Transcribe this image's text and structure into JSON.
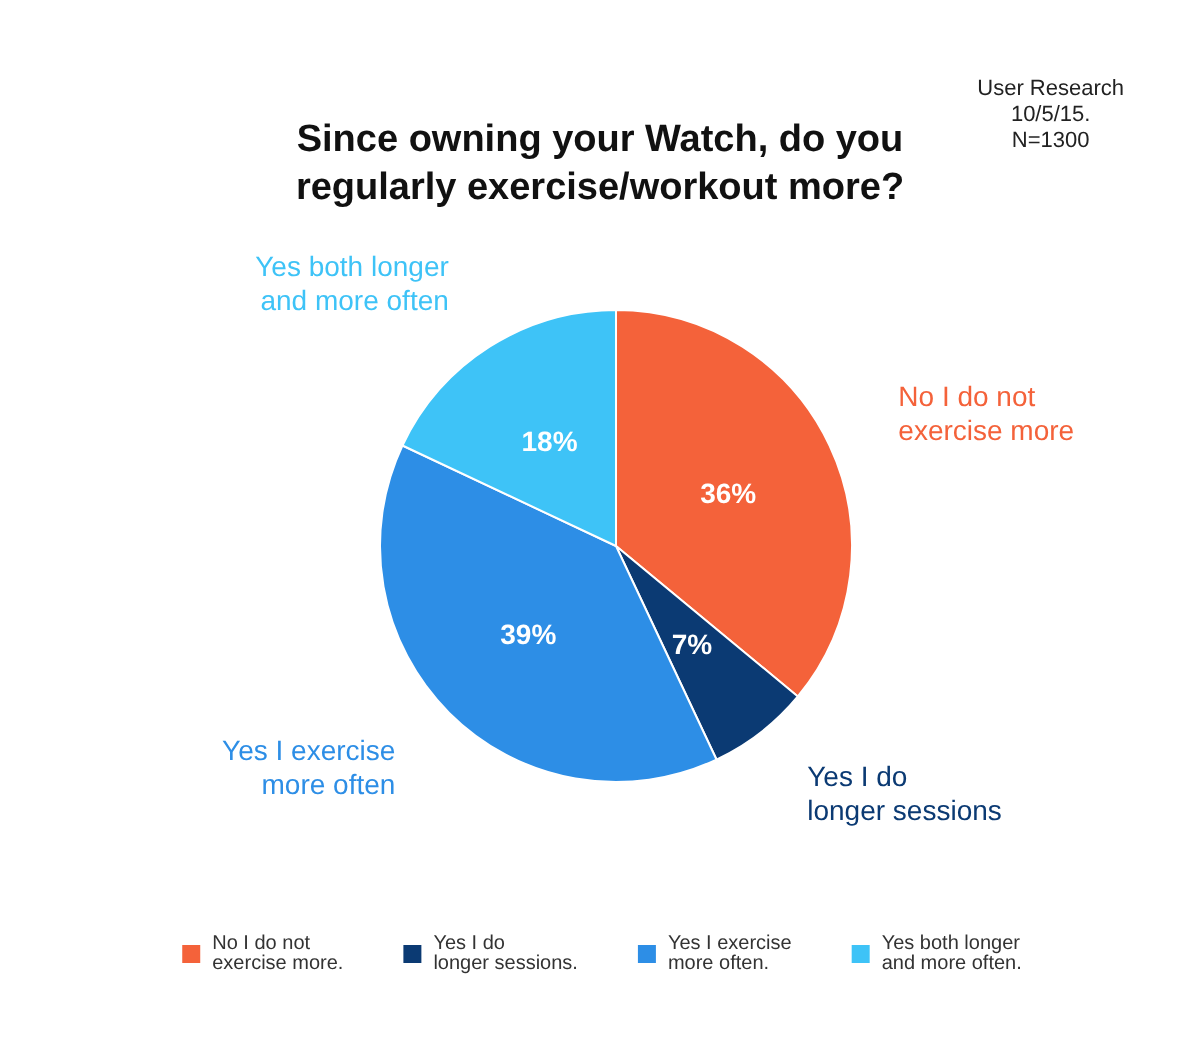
{
  "chart_data": {
    "type": "pie",
    "title": "Since owning your Watch, do you\nregularly exercise/workout more?",
    "categories": [
      "No I do not\nexercise more.",
      "Yes I do\nlonger sessions.",
      "Yes I exercise\nmore often.",
      "Yes both longer\nand more often."
    ],
    "values": [
      36,
      7,
      39,
      18
    ],
    "colors": [
      "#f4623a",
      "#0b3a73",
      "#2d8ee6",
      "#3ec3f7"
    ],
    "value_labels": [
      "36%",
      "7%",
      "39%",
      "18%"
    ],
    "legend": "bottom",
    "annotations": [
      "User Research\n10/5/15.\nN=1300",
      "No I do not\nexercise more",
      "Yes I do\nlonger sessions",
      "Yes I exercise\nmore often",
      "Yes both longer\nand more often"
    ]
  }
}
